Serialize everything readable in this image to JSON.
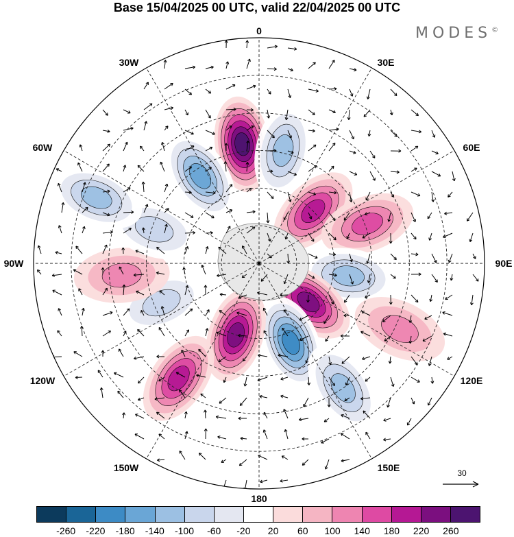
{
  "title": "Base 15/04/2025 00 UTC, valid 22/04/2025 00 UTC",
  "brand": "MODES",
  "brand_mark": "©",
  "longitude_labels": {
    "top": "0",
    "tr": "30E",
    "rt": "60E",
    "right": "90E",
    "rb": "120E",
    "br": "150E",
    "bottom": "180",
    "bl": "150W",
    "lb": "120W",
    "left": "90W",
    "lt": "60W",
    "tl": "30W"
  },
  "vector_reference": "30",
  "colorbar": {
    "colors": [
      "#0c3a5c",
      "#1a6597",
      "#3d8bc5",
      "#6aa6d6",
      "#9cc0e3",
      "#c9d6ec",
      "#e4e7f1",
      "#ffffff",
      "#fbdcdc",
      "#f5b5c3",
      "#ee85b1",
      "#de4aa3",
      "#b51894",
      "#7b0f7f",
      "#4c1470"
    ],
    "ticks": [
      "-260",
      "-220",
      "-180",
      "-140",
      "-100",
      "-60",
      "-20",
      "20",
      "60",
      "100",
      "140",
      "180",
      "220",
      "260"
    ]
  },
  "anomaly_centers": [
    {
      "lon": -8,
      "colat": 48,
      "value": 240
    },
    {
      "lon": -34,
      "colat": 42,
      "value": -160
    },
    {
      "lon": 12,
      "colat": 46,
      "value": -150
    },
    {
      "lon": 46,
      "colat": 30,
      "value": 190
    },
    {
      "lon": 70,
      "colat": 46,
      "value": 120
    },
    {
      "lon": 98,
      "colat": 36,
      "value": -150
    },
    {
      "lon": 128,
      "colat": 25,
      "value": 230
    },
    {
      "lon": 158,
      "colat": 34,
      "value": -210
    },
    {
      "lon": -162,
      "colat": 30,
      "value": 230
    },
    {
      "lon": -145,
      "colat": 56,
      "value": 170
    },
    {
      "lon": 146,
      "colat": 60,
      "value": -150
    },
    {
      "lon": -112,
      "colat": 42,
      "value": -100
    },
    {
      "lon": -95,
      "colat": 55,
      "value": 100
    },
    {
      "lon": -72,
      "colat": 44,
      "value": -80
    },
    {
      "lon": -68,
      "colat": 70,
      "value": -120
    },
    {
      "lon": 115,
      "colat": 62,
      "value": 90
    }
  ]
}
